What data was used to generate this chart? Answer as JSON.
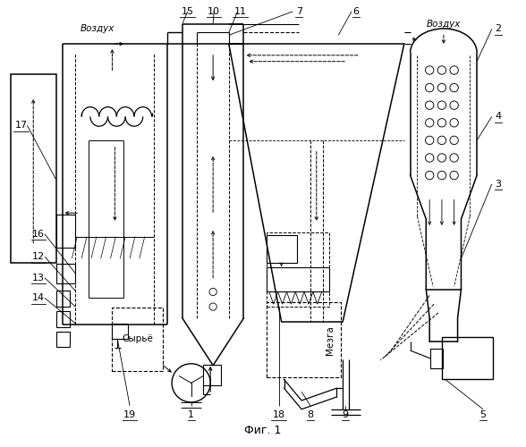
{
  "title": "Фиг. 1",
  "bg": "#ffffff",
  "lc": "#000000",
  "figsize": [
    5.88,
    5.0
  ],
  "dpi": 100,
  "xlim": [
    0,
    5.88
  ],
  "ylim": [
    0,
    5.0
  ]
}
